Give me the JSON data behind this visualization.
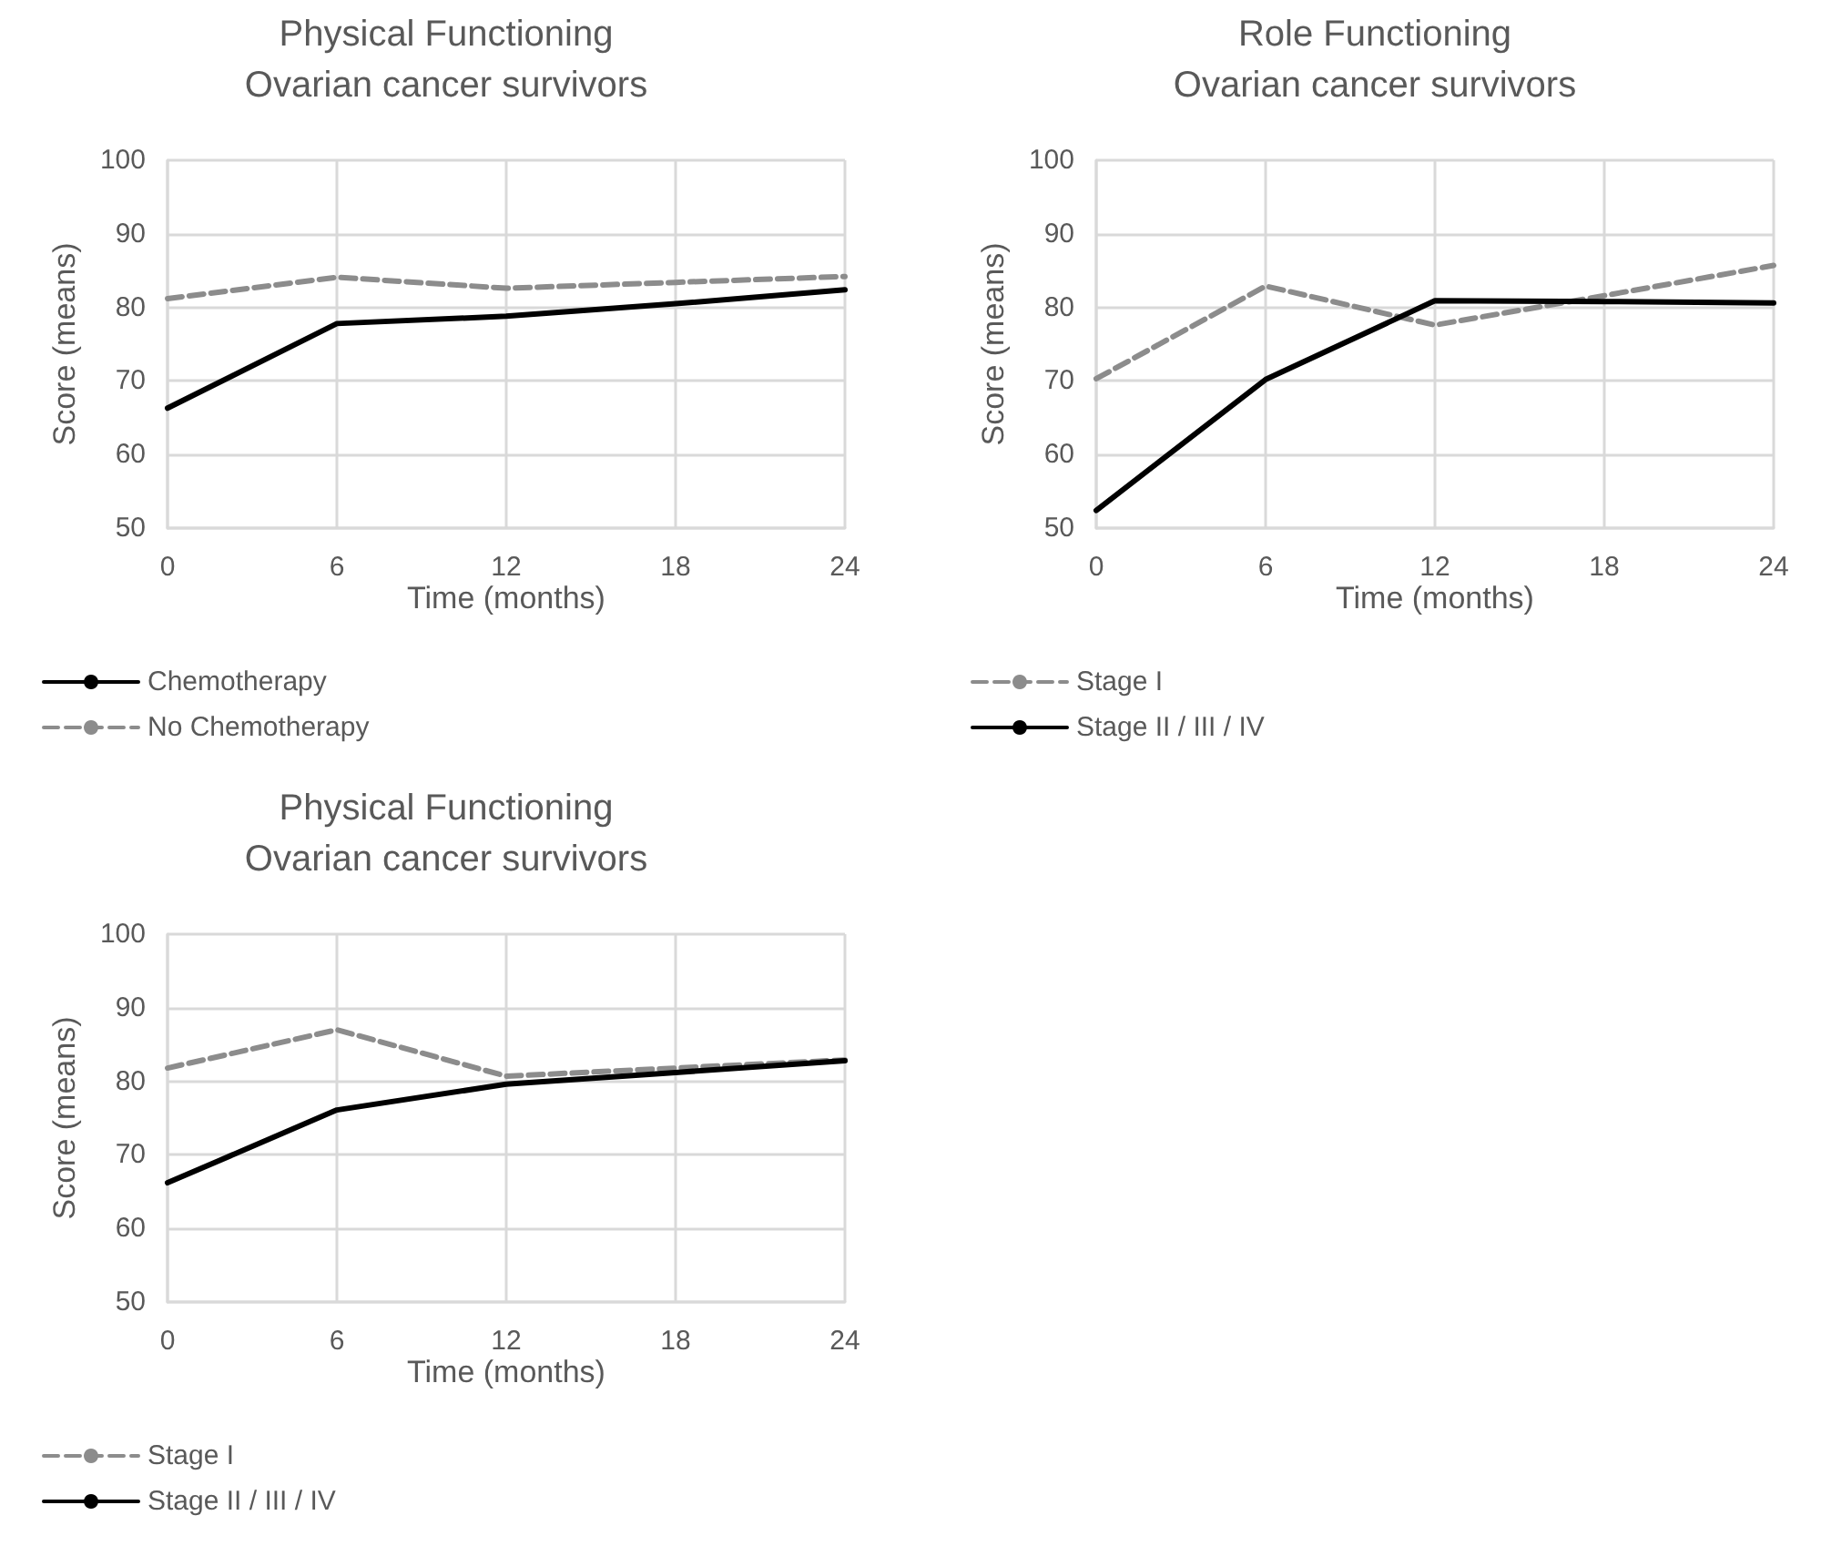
{
  "chart_data": [
    {
      "type": "line",
      "title": "Physical Functioning",
      "subtitle": "Ovarian cancer survivors",
      "xlabel": "Time (months)",
      "ylabel": "Score (means)",
      "x": [
        0,
        6,
        12,
        18,
        24
      ],
      "xlim": [
        0,
        24
      ],
      "xticks": [
        0,
        6,
        12,
        18,
        24
      ],
      "ylim": [
        50,
        100
      ],
      "yticks": [
        50,
        60,
        70,
        80,
        90,
        100
      ],
      "grid": true,
      "legend": "bottom left",
      "marker": "none",
      "series": [
        {
          "name": "Chemotherapy",
          "color": "#000000",
          "line_style": "solid",
          "values": [
            66.3,
            77.8,
            78.8,
            80.5,
            82.4
          ]
        },
        {
          "name": "No Chemotherapy",
          "color": "#8c8c8c",
          "line_style": "dashed",
          "values": [
            81.2,
            84.1,
            82.6,
            83.4,
            84.2
          ]
        }
      ]
    },
    {
      "type": "line",
      "title": "Role Functioning",
      "subtitle": "Ovarian cancer survivors",
      "xlabel": "Time (months)",
      "ylabel": "Score (means)",
      "x": [
        0,
        6,
        12,
        18,
        24
      ],
      "xlim": [
        0,
        24
      ],
      "xticks": [
        0,
        6,
        12,
        18,
        24
      ],
      "ylim": [
        50,
        100
      ],
      "yticks": [
        50,
        60,
        70,
        80,
        90,
        100
      ],
      "grid": true,
      "legend": "bottom left",
      "marker": "none",
      "series": [
        {
          "name": "Stage I",
          "color": "#8c8c8c",
          "line_style": "dashed",
          "values": [
            70.3,
            82.9,
            77.6,
            81.6,
            85.7
          ]
        },
        {
          "name": "Stage II / III / IV",
          "color": "#000000",
          "line_style": "solid",
          "values": [
            52.4,
            70.2,
            80.9,
            80.8,
            80.6
          ]
        }
      ]
    },
    {
      "type": "line",
      "title": "Physical Functioning",
      "subtitle": "Ovarian cancer survivors",
      "xlabel": "Time (months)",
      "ylabel": "Score (means)",
      "x": [
        0,
        6,
        12,
        18,
        24
      ],
      "xlim": [
        0,
        24
      ],
      "xticks": [
        0,
        6,
        12,
        18,
        24
      ],
      "ylim": [
        50,
        100
      ],
      "yticks": [
        50,
        60,
        70,
        80,
        90,
        100
      ],
      "grid": true,
      "legend": "bottom left",
      "marker": "none",
      "series": [
        {
          "name": "Stage I",
          "color": "#8c8c8c",
          "line_style": "dashed",
          "values": [
            81.8,
            87.0,
            80.7,
            81.8,
            82.9
          ]
        },
        {
          "name": "Stage II / III / IV",
          "color": "#000000",
          "line_style": "solid",
          "values": [
            66.2,
            76.1,
            79.6,
            81.2,
            82.8
          ]
        }
      ]
    }
  ]
}
